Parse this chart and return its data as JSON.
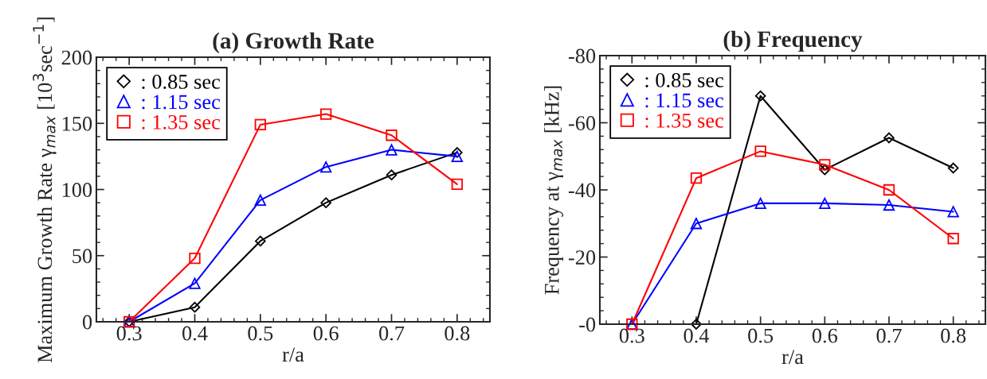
{
  "chart_data": [
    {
      "type": "line",
      "title": "(a) Growth Rate",
      "xlabel": "r/a",
      "ylabel": "Maximum Growth Rate γ$_{max}$ [10$^{3}$sec$^{−1}$]",
      "x": [
        0.3,
        0.4,
        0.5,
        0.6,
        0.7,
        0.8
      ],
      "xlim": [
        0.25,
        0.85
      ],
      "xticks": [
        0.3,
        0.4,
        0.5,
        0.6,
        0.7,
        0.8
      ],
      "ylim": [
        0,
        200
      ],
      "yticks": [
        0,
        50,
        100,
        150,
        200
      ],
      "grid": false,
      "legend": "top left",
      "series": [
        {
          "name": ": 0.85 sec",
          "color": "#000000",
          "marker": "diamond",
          "values": [
            0,
            11,
            61,
            90,
            111,
            128
          ]
        },
        {
          "name": ": 1.15 sec",
          "color": "#0000ff",
          "marker": "triangle",
          "values": [
            0,
            29,
            92,
            117,
            130,
            125
          ]
        },
        {
          "name": ": 1.35 sec",
          "color": "#ff0000",
          "marker": "square",
          "values": [
            0,
            48,
            149,
            157,
            141,
            104
          ]
        }
      ]
    },
    {
      "type": "line",
      "title": "(b) Frequency",
      "xlabel": "r/a",
      "ylabel": "Frequency at γ$_{max}$ [kHz]",
      "x": [
        0.3,
        0.4,
        0.5,
        0.6,
        0.7,
        0.8
      ],
      "xlim": [
        0.25,
        0.85
      ],
      "xticks": [
        0.3,
        0.4,
        0.5,
        0.6,
        0.7,
        0.8
      ],
      "ylim": [
        0,
        -80
      ],
      "yticks": [
        {
          "value": 0,
          "label": "-0"
        },
        -20,
        -40,
        -60,
        -80
      ],
      "grid": false,
      "legend": "top left",
      "series": [
        {
          "name": ": 0.85 sec",
          "color": "#000000",
          "marker": "diamond",
          "x": [
            0.4,
            0.5,
            0.6,
            0.7,
            0.8
          ],
          "values": [
            0,
            -68,
            -46,
            -55.5,
            -46.5
          ]
        },
        {
          "name": ": 1.15 sec",
          "color": "#0000ff",
          "marker": "triangle",
          "values": [
            0,
            -30,
            -36,
            -36,
            -35.5,
            -33.5
          ]
        },
        {
          "name": ": 1.35 sec",
          "color": "#ff0000",
          "marker": "square",
          "values": [
            0,
            -43.5,
            -51.5,
            -47.5,
            -40,
            -25.5
          ]
        }
      ]
    }
  ]
}
